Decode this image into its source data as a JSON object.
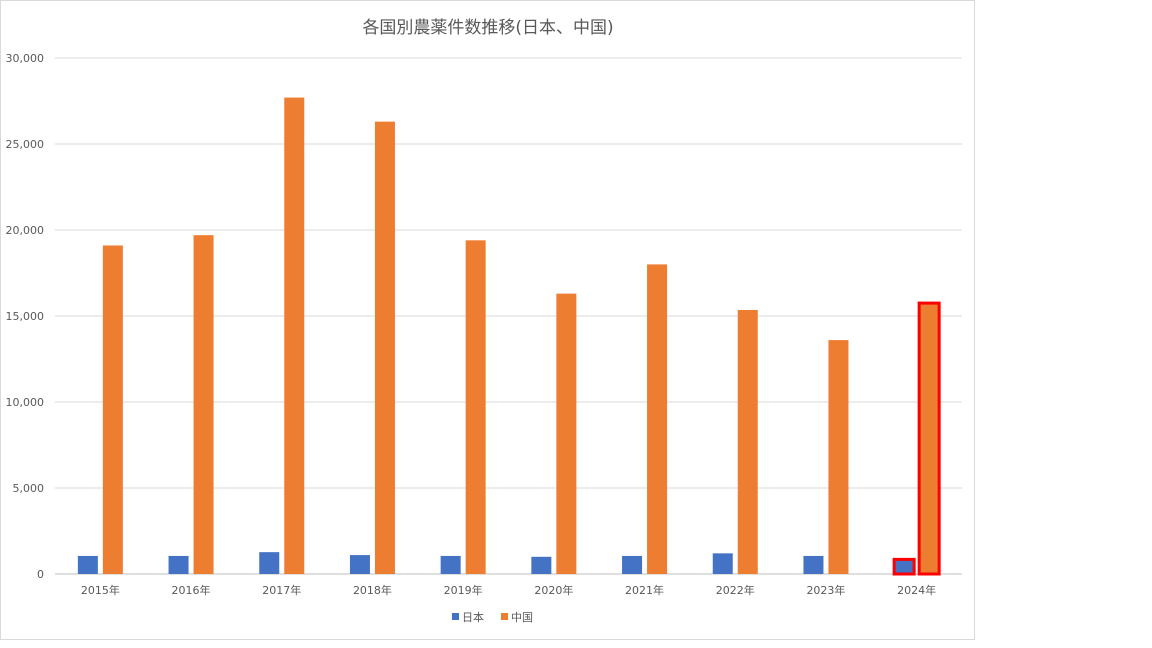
{
  "chart_data": {
    "type": "bar",
    "title": "各国別農薬件数推移(日本、中国)",
    "categories": [
      "2015年",
      "2016年",
      "2017年",
      "2018年",
      "2019年",
      "2020年",
      "2021年",
      "2022年",
      "2023年",
      "2024年"
    ],
    "series": [
      {
        "name": "日本",
        "color": "#4472c4",
        "values": [
          1050,
          1050,
          1270,
          1100,
          1050,
          1000,
          1050,
          1200,
          1050,
          850
        ]
      },
      {
        "name": "中国",
        "color": "#ed7d31",
        "values": [
          19100,
          19700,
          27700,
          26300,
          19400,
          16300,
          18000,
          15350,
          13600,
          15750
        ]
      }
    ],
    "yticks": [
      "0",
      "5,000",
      "10,000",
      "15,000",
      "20,000",
      "25,000",
      "30,000"
    ],
    "ylim": [
      0,
      30000
    ],
    "xlabel": "",
    "ylabel": "",
    "grid": true,
    "legend_position": "bottom",
    "highlight": {
      "category": "2024年",
      "color": "#ff0000"
    }
  }
}
